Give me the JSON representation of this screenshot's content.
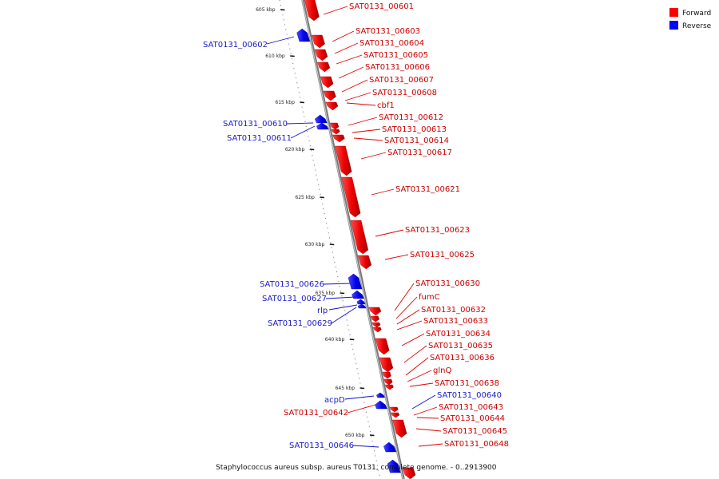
{
  "legend": [
    {
      "label": "Forward",
      "color": "#ff0000"
    },
    {
      "label": "Reverse",
      "color": "#0000ff"
    }
  ],
  "caption": "Staphylococcus aureus subsp. aureus T0131, complete genome. - 0..2913900",
  "ticks": [
    {
      "label": "605 kbp"
    },
    {
      "label": "610 kbp"
    },
    {
      "label": "615 kbp"
    },
    {
      "label": "620 kbp"
    },
    {
      "label": "625 kbp"
    },
    {
      "label": "630 kbp"
    },
    {
      "label": "635 kbp"
    },
    {
      "label": "640 kbp"
    },
    {
      "label": "645 kbp"
    },
    {
      "label": "650 kbp"
    }
  ],
  "genes": [
    {
      "label": "SAT0131_00601",
      "strand": "forward"
    },
    {
      "label": "SAT0131_00602",
      "strand": "reverse"
    },
    {
      "label": "SAT0131_00603",
      "strand": "forward"
    },
    {
      "label": "SAT0131_00604",
      "strand": "forward"
    },
    {
      "label": "SAT0131_00605",
      "strand": "forward"
    },
    {
      "label": "SAT0131_00606",
      "strand": "forward"
    },
    {
      "label": "SAT0131_00607",
      "strand": "forward"
    },
    {
      "label": "SAT0131_00608",
      "strand": "forward"
    },
    {
      "label": "cbf1",
      "strand": "forward"
    },
    {
      "label": "SAT0131_00610",
      "strand": "reverse"
    },
    {
      "label": "SAT0131_00611",
      "strand": "reverse"
    },
    {
      "label": "SAT0131_00612",
      "strand": "forward"
    },
    {
      "label": "SAT0131_00613",
      "strand": "forward"
    },
    {
      "label": "SAT0131_00614",
      "strand": "forward"
    },
    {
      "label": "SAT0131_00617",
      "strand": "forward"
    },
    {
      "label": "SAT0131_00621",
      "strand": "forward"
    },
    {
      "label": "SAT0131_00623",
      "strand": "forward"
    },
    {
      "label": "SAT0131_00625",
      "strand": "forward"
    },
    {
      "label": "SAT0131_00626",
      "strand": "reverse"
    },
    {
      "label": "SAT0131_00627",
      "strand": "reverse"
    },
    {
      "label": "rlp",
      "strand": "reverse"
    },
    {
      "label": "SAT0131_00629",
      "strand": "reverse"
    },
    {
      "label": "SAT0131_00630",
      "strand": "forward"
    },
    {
      "label": "fumC",
      "strand": "forward"
    },
    {
      "label": "SAT0131_00632",
      "strand": "forward"
    },
    {
      "label": "SAT0131_00633",
      "strand": "forward"
    },
    {
      "label": "SAT0131_00634",
      "strand": "forward"
    },
    {
      "label": "SAT0131_00635",
      "strand": "forward"
    },
    {
      "label": "SAT0131_00636",
      "strand": "forward"
    },
    {
      "label": "glnQ",
      "strand": "forward"
    },
    {
      "label": "SAT0131_00638",
      "strand": "forward"
    },
    {
      "label": "acpD",
      "strand": "reverse"
    },
    {
      "label": "SAT0131_00640",
      "strand": "reverse"
    },
    {
      "label": "SAT0131_00642",
      "strand": "forward"
    },
    {
      "label": "SAT0131_00643",
      "strand": "forward"
    },
    {
      "label": "SAT0131_00644",
      "strand": "forward"
    },
    {
      "label": "SAT0131_00645",
      "strand": "forward"
    },
    {
      "label": "SAT0131_00646",
      "strand": "reverse"
    },
    {
      "label": "SAT0131_00648",
      "strand": "forward"
    }
  ]
}
